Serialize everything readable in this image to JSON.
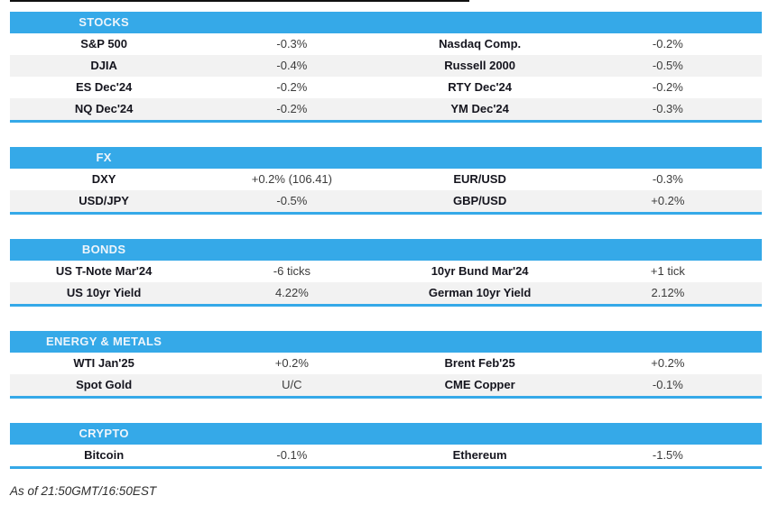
{
  "colors": {
    "header_bg": "#35a9e8",
    "header_text": "#eef5fb",
    "row_alt_bg": "#f2f2f2",
    "label_text": "#15151e",
    "value_text": "#3b3b3b",
    "section_border": "#35a9e8",
    "top_line": "#101010"
  },
  "footer": {
    "text": "As of 21:50GMT/16:50EST"
  },
  "sections": [
    {
      "title": "STOCKS",
      "rows": [
        [
          "S&P 500",
          "-0.3%",
          "Nasdaq Comp.",
          "-0.2%"
        ],
        [
          "DJIA",
          "-0.4%",
          "Russell 2000",
          "-0.5%"
        ],
        [
          "ES Dec'24",
          "-0.2%",
          "RTY Dec'24",
          "-0.2%"
        ],
        [
          "NQ Dec'24",
          "-0.2%",
          "YM Dec'24",
          "-0.3%"
        ]
      ]
    },
    {
      "title": "FX",
      "rows": [
        [
          "DXY",
          "+0.2% (106.41)",
          "EUR/USD",
          "-0.3%"
        ],
        [
          "USD/JPY",
          "-0.5%",
          "GBP/USD",
          "+0.2%"
        ]
      ]
    },
    {
      "title": "BONDS",
      "rows": [
        [
          "US T-Note Mar'24",
          "-6 ticks",
          "10yr Bund Mar'24",
          "+1 tick"
        ],
        [
          "US 10yr Yield",
          "4.22%",
          "German 10yr Yield",
          "2.12%"
        ]
      ]
    },
    {
      "title": "ENERGY & METALS",
      "rows": [
        [
          "WTI Jan'25",
          "+0.2%",
          "Brent Feb'25",
          "+0.2%"
        ],
        [
          "Spot Gold",
          "U/C",
          "CME Copper",
          "-0.1%"
        ]
      ]
    },
    {
      "title": "CRYPTO",
      "rows": [
        [
          "Bitcoin",
          "-0.1%",
          "Ethereum",
          "-1.5%"
        ]
      ]
    }
  ]
}
